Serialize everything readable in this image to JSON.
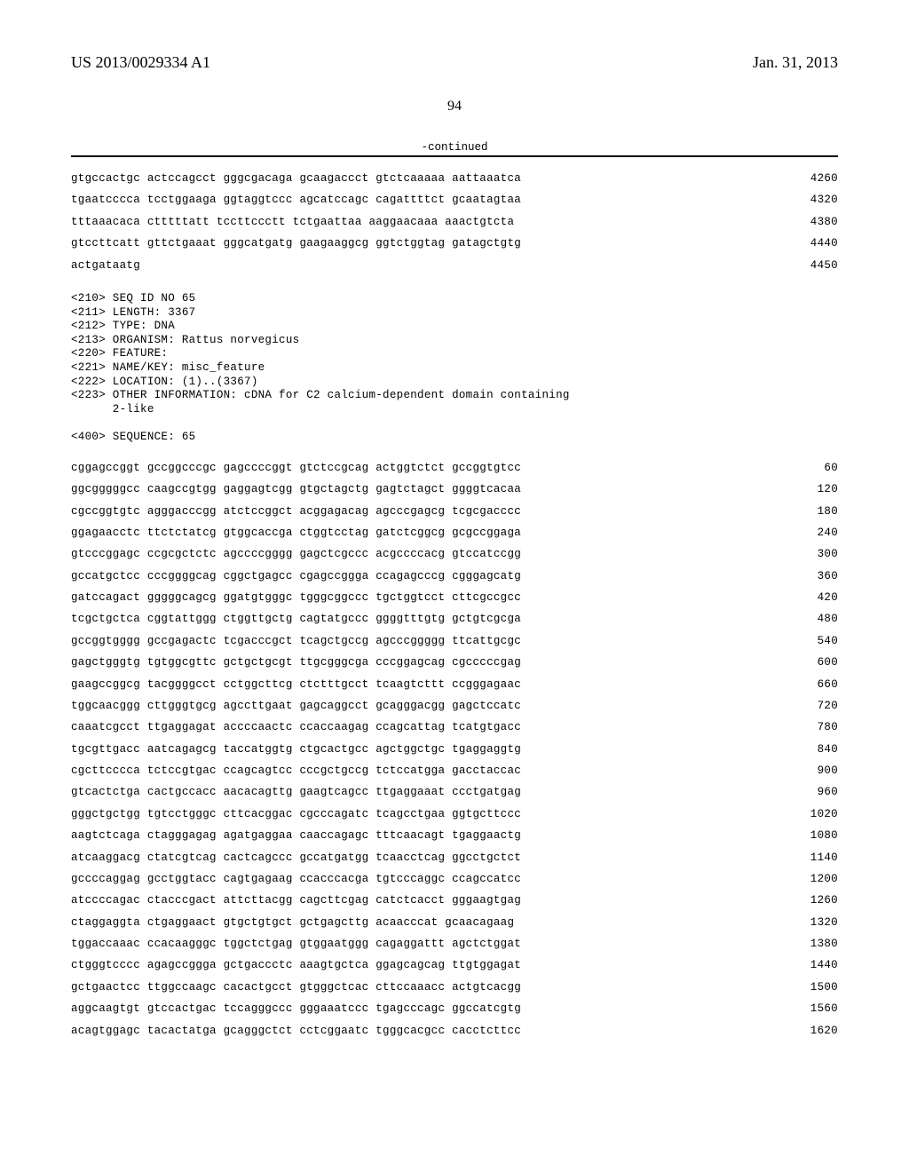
{
  "header": {
    "pub_number": "US 2013/0029334 A1",
    "pub_date": "Jan. 31, 2013",
    "page_number": "94",
    "continued_label": "-continued"
  },
  "seq_tail": {
    "rows": [
      {
        "g": "gtgccactgc actccagcct gggcgacaga gcaagaccct gtctcaaaaa aattaaatca",
        "p": "4260"
      },
      {
        "g": "tgaatcccca tcctggaaga ggtaggtccc agcatccagc cagattttct gcaatagtaa",
        "p": "4320"
      },
      {
        "g": "tttaaacaca ctttttatt tccttccctt tctgaattaa aaggaacaaa aaactgtcta",
        "p": "4380"
      },
      {
        "g": "gtccttcatt gttctgaaat gggcatgatg gaagaaggcg ggtctggtag gatagctgtg",
        "p": "4440"
      },
      {
        "g": "actgataatg",
        "p": "4450"
      }
    ]
  },
  "meta": {
    "lines": [
      "<210> SEQ ID NO 65",
      "<211> LENGTH: 3367",
      "<212> TYPE: DNA",
      "<213> ORGANISM: Rattus norvegicus",
      "<220> FEATURE:",
      "<221> NAME/KEY: misc_feature",
      "<222> LOCATION: (1)..(3367)",
      "<223> OTHER INFORMATION: cDNA for C2 calcium-dependent domain containing",
      "      2-like",
      "",
      "<400> SEQUENCE: 65"
    ]
  },
  "seq_body": {
    "rows": [
      {
        "g": "cggagccggt gccggcccgc gagccccggt gtctccgcag actggtctct gccggtgtcc",
        "p": "60"
      },
      {
        "g": "ggcgggggcc caagccgtgg gaggagtcgg gtgctagctg gagtctagct ggggtcacaa",
        "p": "120"
      },
      {
        "g": "cgccggtgtc agggacccgg atctccggct acggagacag agcccgagcg tcgcgacccc",
        "p": "180"
      },
      {
        "g": "ggagaacctc ttctctatcg gtggcaccga ctggtcctag gatctcggcg gcgccggaga",
        "p": "240"
      },
      {
        "g": "gtcccggagc ccgcgctctc agccccgggg gagctcgccc acgccccacg gtccatccgg",
        "p": "300"
      },
      {
        "g": "gccatgctcc cccggggcag cggctgagcc cgagccggga ccagagcccg cgggagcatg",
        "p": "360"
      },
      {
        "g": "gatccagact gggggcagcg ggatgtgggc tgggcggccc tgctggtcct cttcgccgcc",
        "p": "420"
      },
      {
        "g": "tcgctgctca cggtattggg ctggttgctg cagtatgccc ggggtttgtg gctgtcgcga",
        "p": "480"
      },
      {
        "g": "gccggtgggg gccgagactc tcgacccgct tcagctgccg agcccggggg ttcattgcgc",
        "p": "540"
      },
      {
        "g": "gagctgggtg tgtggcgttc gctgctgcgt ttgcgggcga cccggagcag cgcccccgag",
        "p": "600"
      },
      {
        "g": "gaagccggcg tacggggcct cctggcttcg ctctttgcct tcaagtcttt ccgggagaac",
        "p": "660"
      },
      {
        "g": "tggcaacggg cttgggtgcg agccttgaat gagcaggcct gcagggacgg gagctccatc",
        "p": "720"
      },
      {
        "g": "caaatcgcct ttgaggagat accccaactc ccaccaagag ccagcattag tcatgtgacc",
        "p": "780"
      },
      {
        "g": "tgcgttgacc aatcagagcg taccatggtg ctgcactgcc agctggctgc tgaggaggtg",
        "p": "840"
      },
      {
        "g": "cgcttcccca tctccgtgac ccagcagtcc cccgctgccg tctccatgga gacctaccac",
        "p": "900"
      },
      {
        "g": "gtcactctga cactgccacc aacacagttg gaagtcagcc ttgaggaaat ccctgatgag",
        "p": "960"
      },
      {
        "g": "gggctgctgg tgtcctgggc cttcacggac cgcccagatc tcagcctgaa ggtgcttccc",
        "p": "1020"
      },
      {
        "g": "aagtctcaga ctagggagag agatgaggaa caaccagagc tttcaacagt tgaggaactg",
        "p": "1080"
      },
      {
        "g": "atcaaggacg ctatcgtcag cactcagccc gccatgatgg tcaacctcag ggcctgctct",
        "p": "1140"
      },
      {
        "g": "gccccaggag gcctggtacc cagtgagaag ccacccacga tgtcccaggc ccagccatcc",
        "p": "1200"
      },
      {
        "g": "atccccagac ctacccgact attcttacgg cagcttcgag catctcacct gggaagtgag",
        "p": "1260"
      },
      {
        "g": "ctaggaggta ctgaggaact gtgctgtgct gctgagcttg acaacccat gcaacagaag",
        "p": "1320"
      },
      {
        "g": "tggaccaaac ccacaagggc tggctctgag gtggaatggg cagaggattt agctctggat",
        "p": "1380"
      },
      {
        "g": "ctgggtcccc agagccggga gctgaccctc aaagtgctca ggagcagcag ttgtggagat",
        "p": "1440"
      },
      {
        "g": "gctgaactcc ttggccaagc cacactgcct gtgggctcac cttccaaacc actgtcacgg",
        "p": "1500"
      },
      {
        "g": "aggcaagtgt gtccactgac tccagggccc gggaaatccc tgagcccagc ggccatcgtg",
        "p": "1560"
      },
      {
        "g": "acagtggagc tacactatga gcagggctct cctcggaatc tgggcacgcc cacctcttcc",
        "p": "1620"
      }
    ]
  }
}
